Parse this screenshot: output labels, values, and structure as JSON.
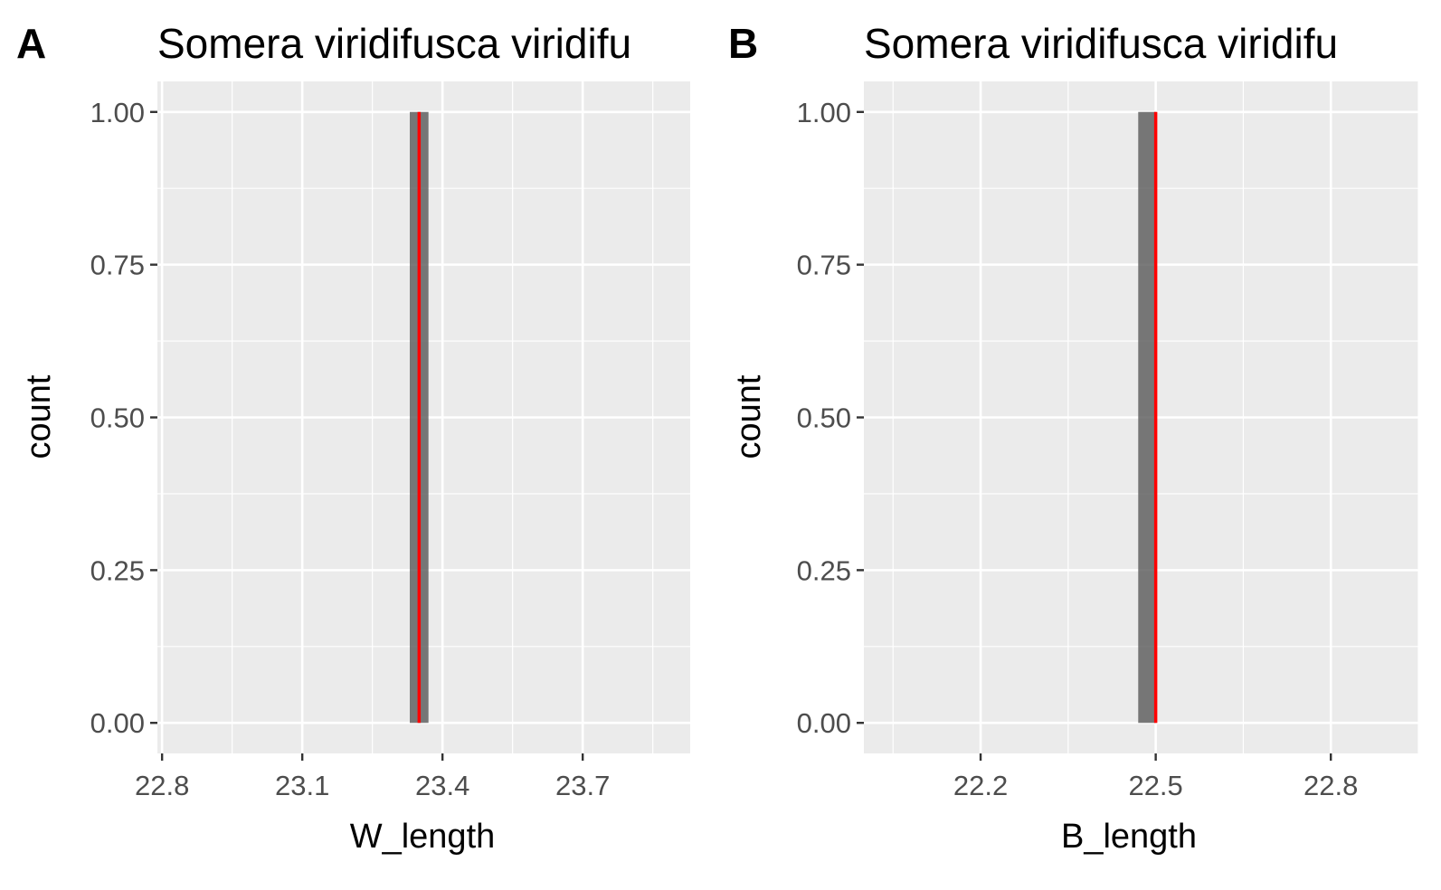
{
  "chart_data": [
    {
      "type": "bar",
      "tag": "A",
      "title": "Somera viridifusca viridifu",
      "xlabel": "W_length",
      "ylabel": "count",
      "xlim": [
        22.79,
        23.93
      ],
      "ylim": [
        -0.05,
        1.05
      ],
      "xticks": [
        22.8,
        23.1,
        23.4,
        23.7
      ],
      "xtick_labels": [
        "22.8",
        "23.1",
        "23.4",
        "23.7"
      ],
      "yticks": [
        0,
        0.25,
        0.5,
        0.75,
        1.0
      ],
      "ytick_labels": [
        "0.00",
        "0.25",
        "0.50",
        "0.75",
        "1.00"
      ],
      "bars": [
        {
          "xmin": 23.33,
          "xmax": 23.37,
          "count": 1
        }
      ],
      "reference_line": {
        "x": 23.35,
        "color": "#ff0000"
      },
      "bar_color": "#595959",
      "panel_bg": "#ebebeb",
      "grid": true
    },
    {
      "type": "bar",
      "tag": "B",
      "title": "Somera viridifusca viridifu",
      "xlabel": "B_length",
      "ylabel": "count",
      "xlim": [
        22.0,
        22.95
      ],
      "ylim": [
        -0.05,
        1.05
      ],
      "xticks": [
        22.2,
        22.5,
        22.8
      ],
      "xtick_labels": [
        "22.2",
        "22.5",
        "22.8"
      ],
      "yticks": [
        0,
        0.25,
        0.5,
        0.75,
        1.0
      ],
      "ytick_labels": [
        "0.00",
        "0.25",
        "0.50",
        "0.75",
        "1.00"
      ],
      "bars": [
        {
          "xmin": 22.47,
          "xmax": 22.5,
          "count": 1
        }
      ],
      "reference_line": {
        "x": 22.5,
        "color": "#ff0000"
      },
      "bar_color": "#595959",
      "panel_bg": "#ebebeb",
      "grid": true
    }
  ]
}
